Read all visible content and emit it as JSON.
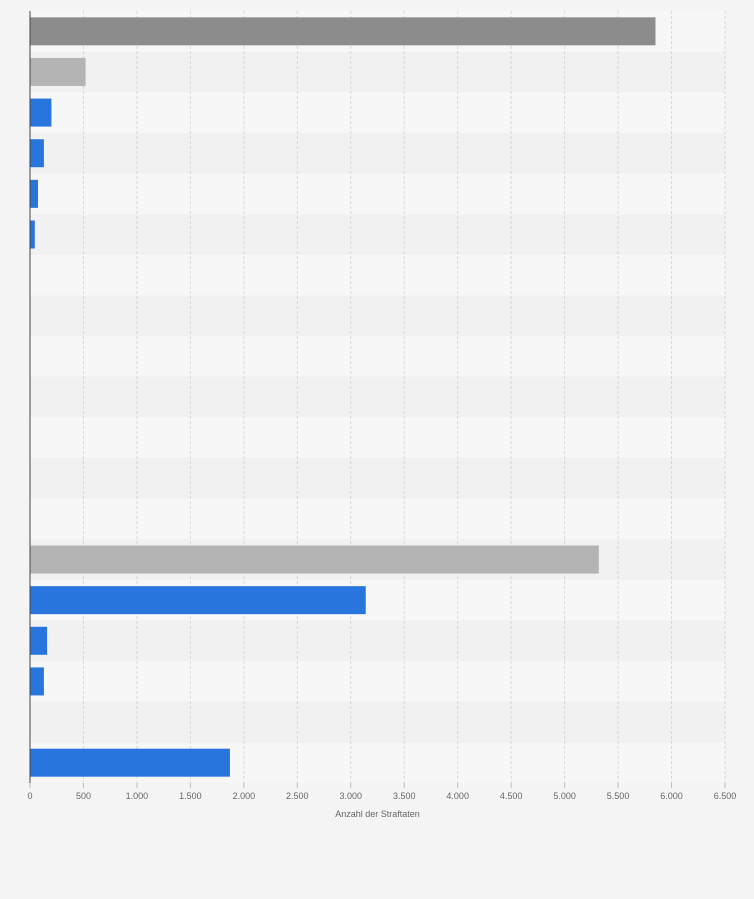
{
  "chart_data": {
    "type": "bar",
    "orientation": "horizontal",
    "xlabel": "Anzahl der Straftaten",
    "xlim": [
      0,
      6500
    ],
    "x_ticks": [
      0,
      500,
      1000,
      1500,
      2000,
      2500,
      3000,
      3500,
      4000,
      4500,
      5000,
      5500,
      6000,
      6500
    ],
    "x_tick_labels": [
      "0",
      "500",
      "1.000",
      "1.500",
      "2.000",
      "2.500",
      "3.000",
      "3.500",
      "4.000",
      "4.500",
      "5.000",
      "5.500",
      "6.000",
      "6.500"
    ],
    "grid": true,
    "categories": [
      "",
      "",
      "",
      "",
      "",
      "",
      "",
      "",
      "",
      "",
      "",
      "",
      "",
      "",
      "",
      "",
      "",
      "",
      ""
    ],
    "values": [
      5850,
      520,
      200,
      130,
      75,
      45,
      0,
      0,
      0,
      0,
      0,
      0,
      0,
      5320,
      3140,
      160,
      130,
      0,
      1870
    ],
    "bar_colors": [
      "#8c8c8c",
      "#b4b4b4",
      "#2876dd",
      "#2876dd",
      "#2876dd",
      "#2876dd",
      "#2876dd",
      "#2876dd",
      "#2876dd",
      "#2876dd",
      "#2876dd",
      "#2876dd",
      "#2876dd",
      "#b4b4b4",
      "#2876dd",
      "#2876dd",
      "#2876dd",
      "#2876dd",
      "#2876dd"
    ]
  },
  "colors": {
    "background": "#f4f4f4",
    "band_light": "#f7f7f7",
    "band_dark": "#f1f1f1",
    "gridline": "#d8d8d8",
    "axis": "#444444",
    "tick_text": "#666666"
  }
}
